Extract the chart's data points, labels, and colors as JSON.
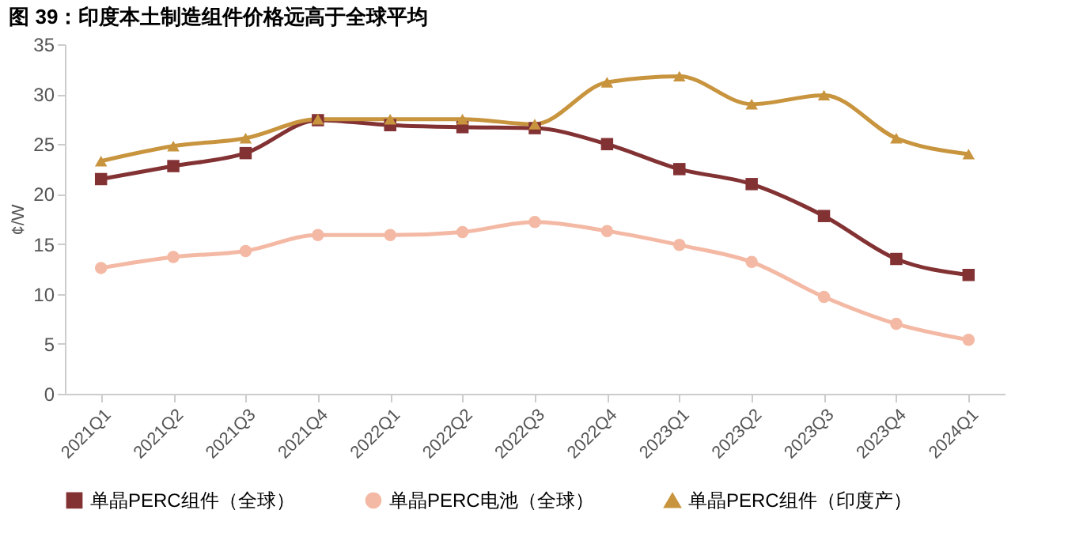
{
  "chart_data": {
    "type": "line",
    "title": "图 39：印度本土制造组件价格远高于全球平均",
    "ylabel": "¢/W",
    "categories": [
      "2021Q1",
      "2021Q2",
      "2021Q3",
      "2021Q4",
      "2022Q1",
      "2022Q2",
      "2022Q3",
      "2022Q4",
      "2023Q1",
      "2023Q2",
      "2023Q3",
      "2023Q4",
      "2024Q1"
    ],
    "series": [
      {
        "name": "单晶PERC组件（全球）",
        "color": "#833234",
        "marker": "square",
        "values": [
          21.5,
          22.8,
          24.1,
          27.4,
          26.9,
          26.7,
          26.6,
          25.0,
          22.5,
          21.0,
          17.8,
          13.5,
          11.9
        ]
      },
      {
        "name": "单晶PERC电池（全球）",
        "color": "#f4b9a4",
        "marker": "circle",
        "values": [
          12.6,
          13.7,
          14.3,
          15.9,
          15.9,
          16.2,
          17.2,
          16.3,
          14.9,
          13.2,
          9.7,
          7.0,
          5.4
        ]
      },
      {
        "name": "单晶PERC组件（印度产）",
        "color": "#c8943e",
        "marker": "triangle",
        "values": [
          23.3,
          24.8,
          25.6,
          27.5,
          27.5,
          27.5,
          27.0,
          31.2,
          31.8,
          29.0,
          29.9,
          25.6,
          24.0
        ]
      }
    ],
    "ylim": [
      0,
      35
    ],
    "yticks": [
      0,
      5,
      10,
      15,
      20,
      25,
      30,
      35
    ],
    "grid": false,
    "legend": "bottom",
    "line_style": "solid"
  }
}
